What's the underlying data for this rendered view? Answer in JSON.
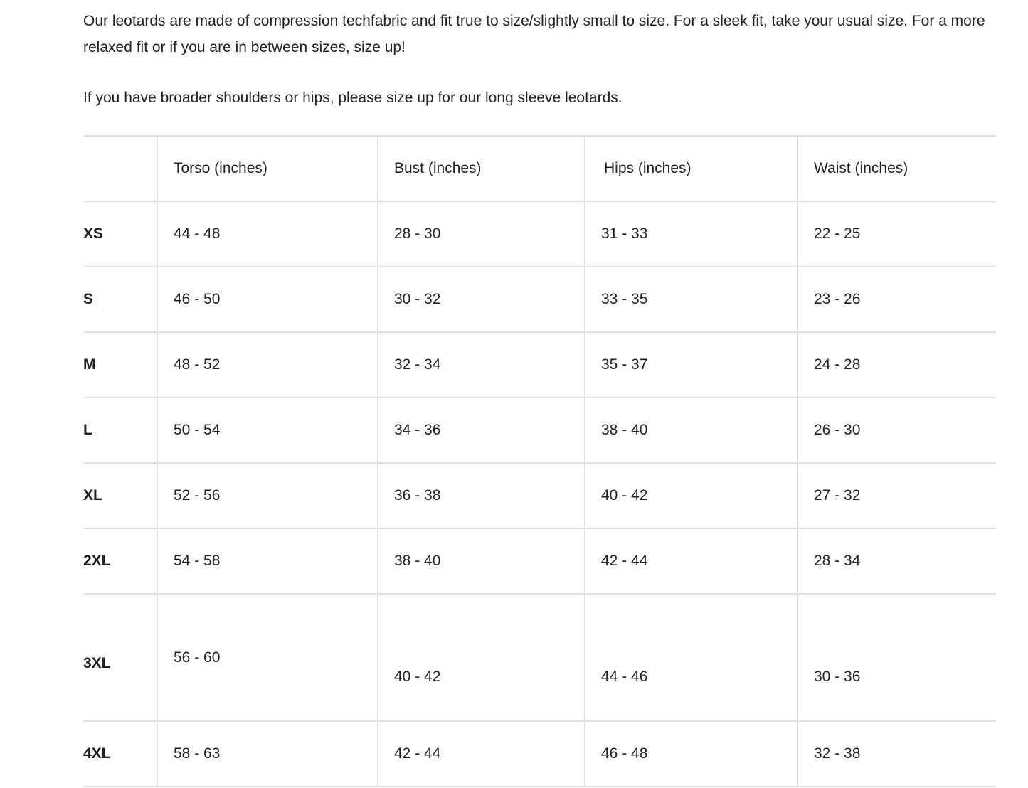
{
  "intro": {
    "paragraph1": "Our leotards are made of compression techfabric and fit true to size/slightly small to size. For a sleek fit, take your usual size. For a more relaxed fit or if you are in between sizes, size up!",
    "paragraph2": "If you have broader shoulders or hips, please size up for our long sleeve leotards."
  },
  "table": {
    "headers": [
      "",
      "Torso (inches)",
      "Bust (inches)",
      "Hips (inches)",
      "Waist (inches)"
    ],
    "rows": [
      [
        "XS",
        "44 - 48",
        "28 - 30",
        "31 - 33",
        "22 - 25"
      ],
      [
        "S",
        "46 - 50",
        "30 - 32",
        "33 - 35",
        "23 - 26"
      ],
      [
        "M",
        "48 - 52",
        "32 - 34",
        "35 - 37",
        "24 - 28"
      ],
      [
        "L",
        "50 - 54",
        "34 - 36",
        "38 - 40",
        "26 - 30"
      ],
      [
        "XL",
        "52 - 56",
        "36 - 38",
        "40 - 42",
        "27 - 32"
      ],
      [
        "2XL",
        "54 - 58",
        "38 - 40",
        "42 - 44",
        "28 - 34"
      ],
      [
        "3XL",
        "56 - 60",
        "40 - 42",
        "44 - 46",
        "30 - 36"
      ],
      [
        "4XL",
        "58 - 63",
        "42 - 44",
        "46 - 48",
        "32 - 38"
      ]
    ]
  }
}
